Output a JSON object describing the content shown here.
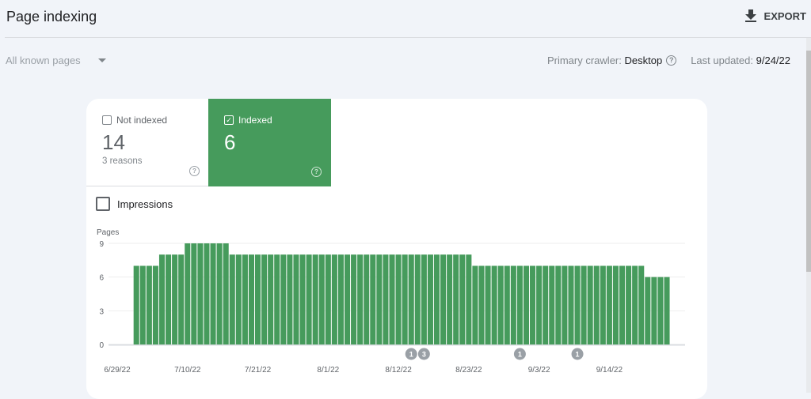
{
  "header": {
    "title": "Page indexing",
    "export_label": "EXPORT",
    "export_icon": "download-icon"
  },
  "filter": {
    "selected": "All known pages"
  },
  "meta": {
    "crawler_label": "Primary crawler:",
    "crawler_value": "Desktop",
    "updated_label": "Last updated:",
    "updated_value": "9/24/22"
  },
  "tabs": [
    {
      "label": "Not indexed",
      "value": "14",
      "sub": "3 reasons",
      "checked": false
    },
    {
      "label": "Indexed",
      "value": "6",
      "sub": "",
      "checked": true
    }
  ],
  "impressions": {
    "label": "Impressions",
    "checked": false
  },
  "colors": {
    "bar": "#469b5c",
    "accent": "#469b5c",
    "annotation": "#9aa0a6"
  },
  "chart_data": {
    "type": "bar",
    "ylabel": "Pages",
    "ylim": [
      0,
      9
    ],
    "yticks": [
      "0",
      "3",
      "6",
      "9"
    ],
    "xticks": [
      "6/29/22",
      "7/10/22",
      "7/21/22",
      "8/1/22",
      "8/12/22",
      "8/23/22",
      "9/3/22",
      "9/14/22"
    ],
    "grid": true,
    "categories": [
      "7/2/22",
      "7/3/22",
      "7/4/22",
      "7/5/22",
      "7/6/22",
      "7/7/22",
      "7/8/22",
      "7/9/22",
      "7/10/22",
      "7/11/22",
      "7/12/22",
      "7/13/22",
      "7/14/22",
      "7/15/22",
      "7/16/22",
      "7/17/22",
      "7/18/22",
      "7/19/22",
      "7/20/22",
      "7/21/22",
      "7/22/22",
      "7/23/22",
      "7/24/22",
      "7/25/22",
      "7/26/22",
      "7/27/22",
      "7/28/22",
      "7/29/22",
      "7/30/22",
      "7/31/22",
      "8/1/22",
      "8/2/22",
      "8/3/22",
      "8/4/22",
      "8/5/22",
      "8/6/22",
      "8/7/22",
      "8/8/22",
      "8/9/22",
      "8/10/22",
      "8/11/22",
      "8/12/22",
      "8/13/22",
      "8/14/22",
      "8/15/22",
      "8/16/22",
      "8/17/22",
      "8/18/22",
      "8/19/22",
      "8/20/22",
      "8/21/22",
      "8/22/22",
      "8/23/22",
      "8/24/22",
      "8/25/22",
      "8/26/22",
      "8/27/22",
      "8/28/22",
      "8/29/22",
      "8/30/22",
      "8/31/22",
      "9/1/22",
      "9/2/22",
      "9/3/22",
      "9/4/22",
      "9/5/22",
      "9/6/22",
      "9/7/22",
      "9/8/22",
      "9/9/22",
      "9/10/22",
      "9/11/22",
      "9/12/22",
      "9/13/22",
      "9/14/22",
      "9/15/22",
      "9/16/22",
      "9/17/22",
      "9/18/22",
      "9/19/22",
      "9/20/22",
      "9/21/22",
      "9/22/22",
      "9/23/22"
    ],
    "values": [
      7,
      7,
      7,
      7,
      8,
      8,
      8,
      8,
      9,
      9,
      9,
      9,
      9,
      9,
      9,
      8,
      8,
      8,
      8,
      8,
      8,
      8,
      8,
      8,
      8,
      8,
      8,
      8,
      8,
      8,
      8,
      8,
      8,
      8,
      8,
      8,
      8,
      8,
      8,
      8,
      8,
      8,
      8,
      8,
      8,
      8,
      8,
      8,
      8,
      8,
      8,
      8,
      8,
      7,
      7,
      7,
      7,
      7,
      7,
      7,
      7,
      7,
      7,
      7,
      7,
      7,
      7,
      7,
      7,
      7,
      7,
      7,
      7,
      7,
      7,
      7,
      7,
      7,
      7,
      7,
      6,
      6,
      6,
      6
    ],
    "annotations": [
      {
        "date": "8/14/22",
        "label": "1"
      },
      {
        "date": "8/16/22",
        "label": "3"
      },
      {
        "date": "8/31/22",
        "label": "1"
      },
      {
        "date": "9/9/22",
        "label": "1"
      }
    ]
  }
}
